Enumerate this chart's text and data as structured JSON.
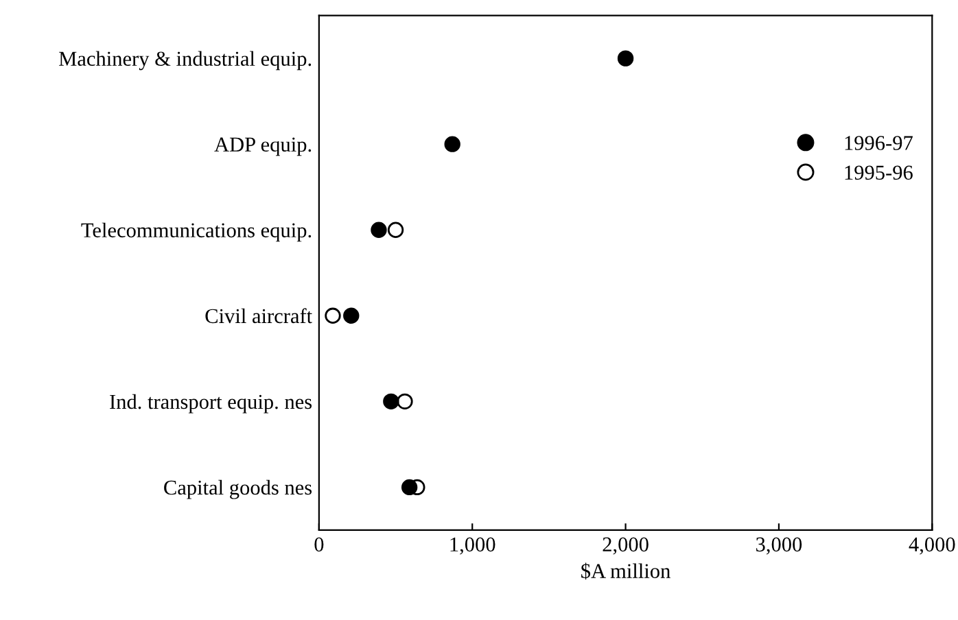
{
  "chart_data": {
    "type": "scatter",
    "xlabel": "$A million",
    "categories": [
      "Machinery & industrial equip.",
      "ADP equip.",
      "Telecommunications equip.",
      "Civil aircraft",
      "Ind. transport equip. nes",
      "Capital goods nes"
    ],
    "orientation": "horizontal",
    "series": [
      {
        "name": "1995-96",
        "color": "#ffffff",
        "values": [
          null,
          null,
          500,
          90,
          560,
          640
        ]
      },
      {
        "name": "1996-97",
        "color": "#000000",
        "values": [
          2000,
          870,
          390,
          210,
          470,
          590
        ]
      }
    ],
    "xlim": [
      0,
      4000
    ],
    "xticks": [
      0,
      {
        "value": 1000,
        "label": "1,000"
      },
      {
        "value": 2000,
        "label": "2,000"
      },
      {
        "value": 3000,
        "label": "3,000"
      },
      {
        "value": 4000,
        "label": "4,000"
      }
    ],
    "marker": "circle",
    "grid": false,
    "legend": "right"
  }
}
